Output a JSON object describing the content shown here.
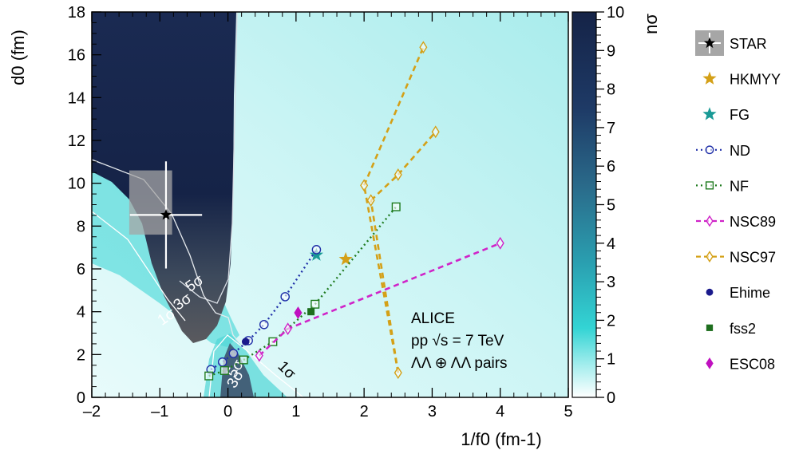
{
  "chart_data": {
    "type": "scatter",
    "xlabel": "1/f0 (fm-1)",
    "ylabel": "d0 (fm)",
    "xlim": [
      -2,
      5
    ],
    "ylim": [
      0,
      18
    ],
    "x_ticks": [
      "-2",
      "-1",
      "0",
      "1",
      "2",
      "3",
      "4",
      "5"
    ],
    "y_ticks": [
      "0",
      "2",
      "4",
      "6",
      "8",
      "10",
      "12",
      "14",
      "16",
      "18"
    ],
    "colorbar": {
      "label": "nσ",
      "range": [
        0,
        10
      ],
      "ticks": [
        "0",
        "1",
        "2",
        "3",
        "4",
        "5",
        "6",
        "7",
        "8",
        "9",
        "10"
      ],
      "colors": [
        "#ffffff",
        "#33d4d4",
        "#152347"
      ]
    },
    "annotation": {
      "line1": "ALICE",
      "line2": "pp √s = 7 TeV",
      "line3": "ΛΛ ⊕ ΛΛ pairs"
    },
    "contour_labels": [
      "5σ",
      "3σ",
      "1σ",
      "1σ",
      "3σ",
      "5σ"
    ],
    "series": [
      {
        "name": "STAR",
        "marker": "star",
        "color": "#000000",
        "points": [
          {
            "x": -0.91,
            "y": 8.52
          }
        ],
        "x_err": 0.53,
        "y_err": 2.5,
        "syst_box": {
          "x": [
            -1.45,
            -0.82
          ],
          "y": [
            7.6,
            10.6
          ]
        }
      },
      {
        "name": "HKMYY",
        "marker": "star",
        "color": "#d4a017",
        "points": [
          {
            "x": 1.73,
            "y": 6.45
          }
        ]
      },
      {
        "name": "FG",
        "marker": "star",
        "color": "#1a9a96",
        "points": [
          {
            "x": 1.3,
            "y": 6.65
          }
        ]
      },
      {
        "name": "ND",
        "marker": "open-circle",
        "line": "dotted",
        "color": "#1f2fa8",
        "points": [
          {
            "x": -0.25,
            "y": 1.3
          },
          {
            "x": -0.08,
            "y": 1.65
          },
          {
            "x": 0.08,
            "y": 2.05
          },
          {
            "x": 0.3,
            "y": 2.65
          },
          {
            "x": 0.53,
            "y": 3.4
          },
          {
            "x": 0.84,
            "y": 4.7
          },
          {
            "x": 1.3,
            "y": 6.9
          }
        ]
      },
      {
        "name": "NF",
        "marker": "open-square",
        "line": "dotted",
        "color": "#1e7a1e",
        "points": [
          {
            "x": -0.28,
            "y": 1.0
          },
          {
            "x": -0.05,
            "y": 1.25
          },
          {
            "x": 0.23,
            "y": 1.75
          },
          {
            "x": 0.66,
            "y": 2.6
          },
          {
            "x": 1.28,
            "y": 4.35
          },
          {
            "x": 2.47,
            "y": 8.9
          }
        ]
      },
      {
        "name": "NSC89",
        "marker": "open-diamond",
        "line": "dashed",
        "color": "#d024c8",
        "points": [
          {
            "x": 0.46,
            "y": 1.95
          },
          {
            "x": 0.88,
            "y": 3.2
          },
          {
            "x": 4.0,
            "y": 7.2
          }
        ]
      },
      {
        "name": "NSC97",
        "marker": "open-diamond",
        "line": "dashed",
        "color": "#d4a017",
        "points": [
          {
            "x": 2.5,
            "y": 1.15
          },
          {
            "x": 2.1,
            "y": 9.2
          },
          {
            "x": 2.0,
            "y": 9.9
          },
          {
            "x": 2.5,
            "y": 10.4
          },
          {
            "x": 3.05,
            "y": 12.4
          },
          {
            "x": 2.87,
            "y": 16.35
          }
        ],
        "segments": [
          [
            0,
            1
          ],
          [
            1,
            3
          ],
          [
            3,
            4
          ],
          [
            0,
            2
          ],
          [
            2,
            5
          ]
        ]
      },
      {
        "name": "Ehime",
        "marker": "filled-circle",
        "color": "#1a1a8c",
        "points": [
          {
            "x": 0.26,
            "y": 2.6
          }
        ]
      },
      {
        "name": "fss2",
        "marker": "filled-square",
        "color": "#1e6e1e",
        "points": [
          {
            "x": 1.22,
            "y": 4.0
          }
        ]
      },
      {
        "name": "ESC08",
        "marker": "filled-diamond",
        "color": "#c010c0",
        "points": [
          {
            "x": 1.03,
            "y": 3.95
          }
        ]
      }
    ]
  }
}
